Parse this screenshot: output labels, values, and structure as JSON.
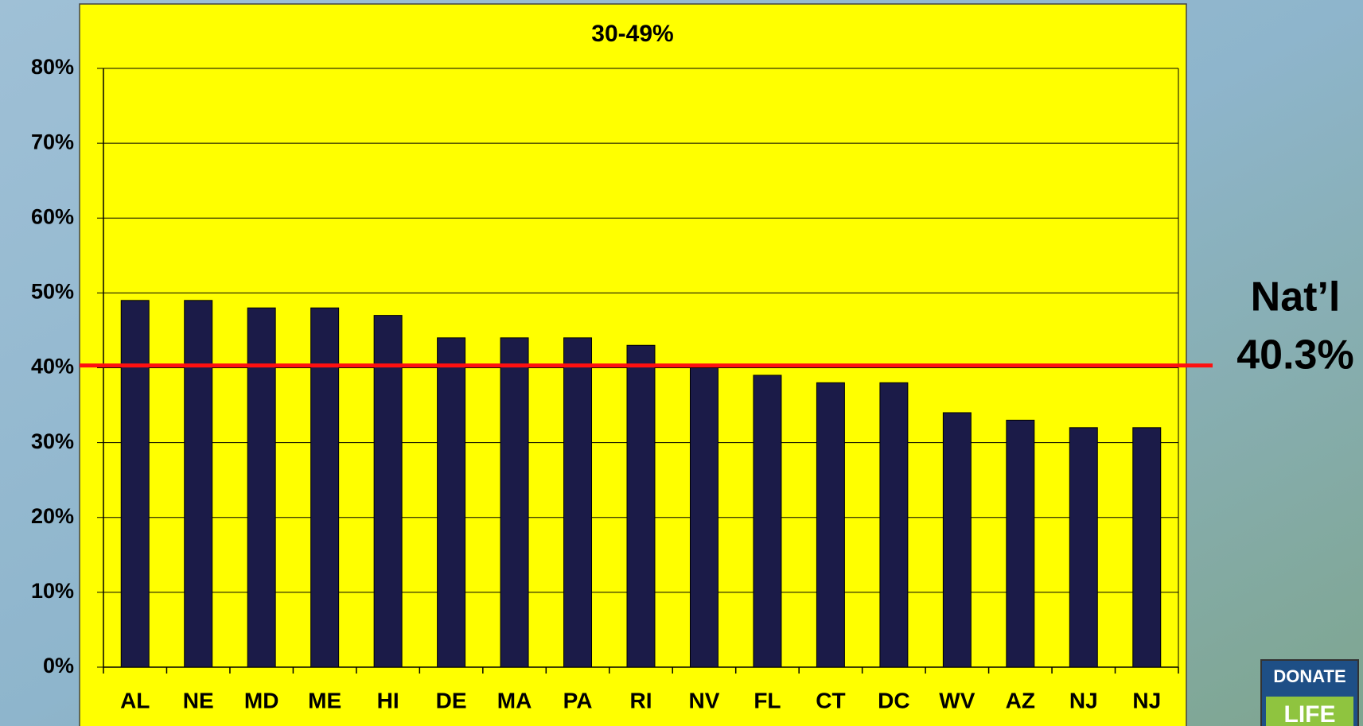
{
  "chart_data": {
    "type": "bar",
    "title": "30-49%",
    "categories": [
      "AL",
      "NE",
      "MD",
      "ME",
      "HI",
      "DE",
      "MA",
      "PA",
      "RI",
      "NV",
      "FL",
      "CT",
      "DC",
      "WV",
      "AZ",
      "NJ",
      "NJ"
    ],
    "values": [
      49,
      49,
      48,
      48,
      47,
      44,
      44,
      44,
      43,
      40,
      39,
      38,
      38,
      34,
      33,
      32,
      32
    ],
    "color": "#1b1b48",
    "ylim": [
      0,
      80
    ],
    "yticks": [
      {
        "value": 0,
        "label": "0%"
      },
      {
        "value": 10,
        "label": "10%"
      },
      {
        "value": 20,
        "label": "20%"
      },
      {
        "value": 30,
        "label": "30%"
      },
      {
        "value": 40,
        "label": "40%"
      },
      {
        "value": 50,
        "label": "50%"
      },
      {
        "value": 60,
        "label": "60%"
      },
      {
        "value": 70,
        "label": "70%"
      },
      {
        "value": 80,
        "label": "80%"
      }
    ],
    "grid": true,
    "reference_line": {
      "name": "Nat’l",
      "value": 40.3,
      "value_label": "40.3%",
      "color": "#ff1010"
    }
  },
  "logo": {
    "line1": "DONATE",
    "line2": "LIFE"
  }
}
